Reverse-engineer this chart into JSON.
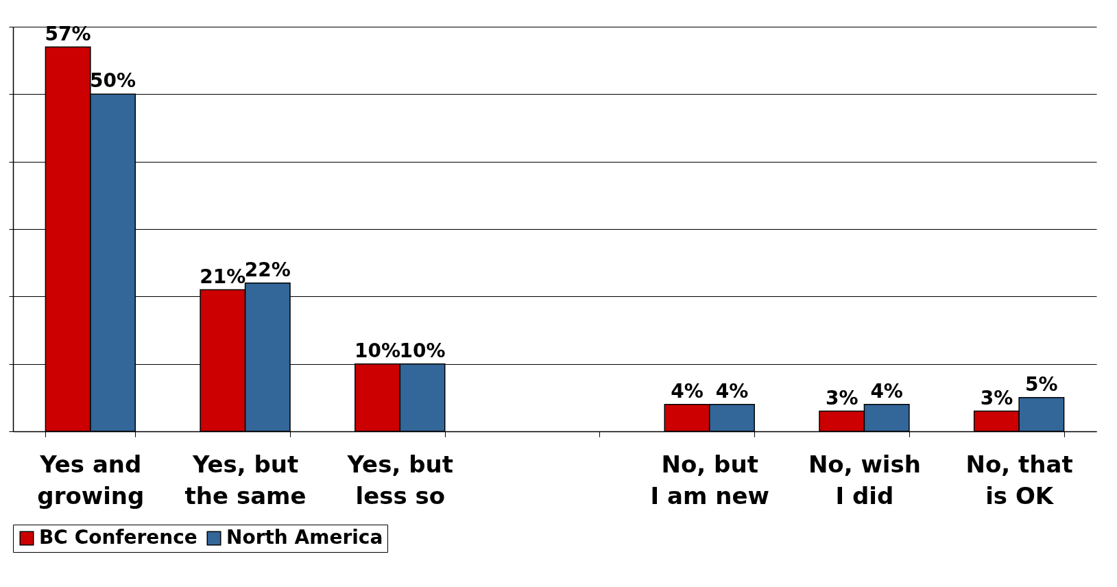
{
  "chart_data": {
    "type": "bar",
    "categories": [
      "Yes and growing",
      "Yes, but the same",
      "Yes, but less so",
      null,
      "No, but I am new",
      "No, wish I did",
      "No, that is OK"
    ],
    "series": [
      {
        "name": "BC Conference",
        "color": "#cc0000",
        "values": [
          57,
          21,
          10,
          null,
          4,
          3,
          3
        ],
        "value_labels": [
          "57%",
          "21%",
          "10%",
          null,
          "4%",
          "3%",
          "3%"
        ]
      },
      {
        "name": "North America",
        "color": "#336699",
        "values": [
          50,
          22,
          10,
          null,
          4,
          4,
          5
        ],
        "value_labels": [
          "50%",
          "22%",
          "10%",
          null,
          "4%",
          "4%",
          "5%"
        ]
      }
    ],
    "tick_labels": "x",
    "grid": "y",
    "legend": "bottom"
  }
}
